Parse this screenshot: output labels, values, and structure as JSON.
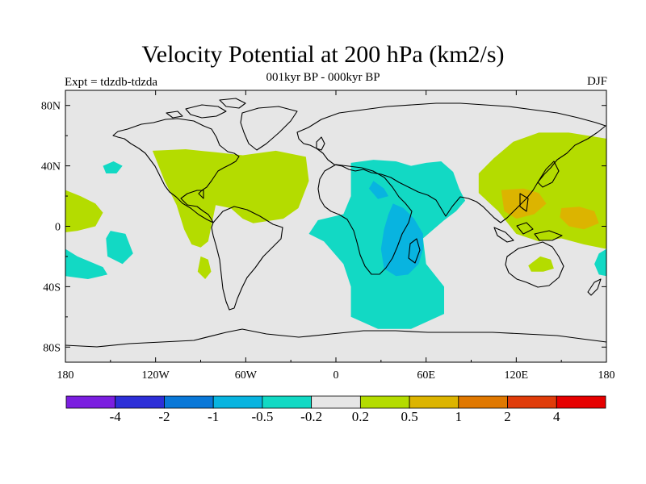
{
  "title": "Velocity Potential at 200 hPa (km2/s)",
  "subtitle": "001kyr BP - 000kyr BP",
  "experiment": "Expt = tdzdb-tdzda",
  "season": "DJF",
  "map": {
    "projection": "cylindrical-equidistant",
    "lon_range": [
      -180,
      180
    ],
    "lat_range": [
      -90,
      90
    ],
    "lat_ticks": [
      {
        "value": 80,
        "label": "80N"
      },
      {
        "value": 40,
        "label": "40N"
      },
      {
        "value": 0,
        "label": "0"
      },
      {
        "value": -40,
        "label": "40S"
      },
      {
        "value": -80,
        "label": "80S"
      }
    ],
    "lon_ticks": [
      {
        "value": -180,
        "label": "180"
      },
      {
        "value": -120,
        "label": "120W"
      },
      {
        "value": -60,
        "label": "60W"
      },
      {
        "value": 0,
        "label": "0"
      },
      {
        "value": 60,
        "label": "60E"
      },
      {
        "value": 120,
        "label": "120E"
      },
      {
        "value": 180,
        "label": "180"
      }
    ],
    "background_color": "#e6e6e6"
  },
  "colorbar": {
    "colors": [
      "#7b1ee0",
      "#2d2fd8",
      "#0a78d8",
      "#08b4e0",
      "#12d9c4",
      "#e6e6e6",
      "#b4dc00",
      "#dcb400",
      "#e07800",
      "#e03c0a",
      "#e60000"
    ],
    "labels": [
      "-4",
      "-2",
      "-1",
      "-0.5",
      "-0.2",
      "0.2",
      "0.5",
      "1",
      "2",
      "4"
    ]
  },
  "anomaly_regions": [
    {
      "name": "north-america-positive",
      "level": "0.2 to 0.5",
      "color": "#b4dc00",
      "lonlat": [
        [
          -122,
          50
        ],
        [
          -100,
          51
        ],
        [
          -80,
          49
        ],
        [
          -62,
          47
        ],
        [
          -40,
          50
        ],
        [
          -20,
          46
        ],
        [
          -18,
          30
        ],
        [
          -25,
          12
        ],
        [
          -35,
          5
        ],
        [
          -55,
          2
        ],
        [
          -62,
          5
        ],
        [
          -70,
          12
        ],
        [
          -80,
          14
        ],
        [
          -85,
          -10
        ],
        [
          -90,
          -14
        ],
        [
          -96,
          -12
        ],
        [
          -101,
          -2
        ],
        [
          -106,
          14
        ],
        [
          -114,
          30
        ],
        [
          -118,
          40
        ]
      ]
    },
    {
      "name": "east-pacific-positive",
      "level": "0.2 to 0.5",
      "color": "#b4dc00",
      "lonlat": [
        [
          -180,
          24
        ],
        [
          -170,
          20
        ],
        [
          -160,
          15
        ],
        [
          -155,
          9
        ],
        [
          -160,
          0
        ],
        [
          -172,
          -3
        ],
        [
          -180,
          -4
        ]
      ]
    },
    {
      "name": "south-america-positive",
      "level": "0.2 to 0.5",
      "color": "#b4dc00",
      "lonlat": [
        [
          -90,
          -20
        ],
        [
          -85,
          -22
        ],
        [
          -83,
          -30
        ],
        [
          -87,
          -35
        ],
        [
          -92,
          -30
        ]
      ]
    },
    {
      "name": "asia-pacific-positive",
      "level": "0.2 to 0.5",
      "color": "#b4dc00",
      "lonlat": [
        [
          135,
          62
        ],
        [
          155,
          62
        ],
        [
          180,
          58
        ],
        [
          180,
          -15
        ],
        [
          165,
          -12
        ],
        [
          150,
          -8
        ],
        [
          135,
          -10
        ],
        [
          120,
          -5
        ],
        [
          108,
          10
        ],
        [
          95,
          22
        ],
        [
          95,
          35
        ],
        [
          105,
          45
        ],
        [
          118,
          56
        ]
      ]
    },
    {
      "name": "australia-positive",
      "level": "0.2 to 0.5",
      "color": "#b4dc00",
      "lonlat": [
        [
          128,
          -26
        ],
        [
          136,
          -20
        ],
        [
          143,
          -22
        ],
        [
          145,
          -28
        ],
        [
          138,
          -30
        ],
        [
          130,
          -30
        ]
      ]
    },
    {
      "name": "asia-pacific-positive-core-a",
      "level": "0.5 to 1",
      "color": "#dcb400",
      "lonlat": [
        [
          110,
          24
        ],
        [
          125,
          25
        ],
        [
          135,
          22
        ],
        [
          140,
          15
        ],
        [
          132,
          8
        ],
        [
          120,
          5
        ],
        [
          112,
          10
        ]
      ]
    },
    {
      "name": "asia-pacific-positive-core-b",
      "level": "0.5 to 1",
      "color": "#dcb400",
      "lonlat": [
        [
          150,
          12
        ],
        [
          162,
          13
        ],
        [
          172,
          10
        ],
        [
          175,
          2
        ],
        [
          165,
          -2
        ],
        [
          155,
          0
        ],
        [
          149,
          6
        ]
      ]
    },
    {
      "name": "africa-negative",
      "level": "-0.5 to -0.2",
      "color": "#12d9c4",
      "lonlat": [
        [
          10,
          42
        ],
        [
          25,
          44
        ],
        [
          40,
          43
        ],
        [
          50,
          40
        ],
        [
          60,
          42
        ],
        [
          70,
          43
        ],
        [
          78,
          36
        ],
        [
          82,
          25
        ],
        [
          86,
          17
        ],
        [
          80,
          10
        ],
        [
          72,
          4
        ],
        [
          58,
          -8
        ],
        [
          60,
          -25
        ],
        [
          72,
          -40
        ],
        [
          72,
          -58
        ],
        [
          50,
          -68
        ],
        [
          28,
          -68
        ],
        [
          10,
          -60
        ],
        [
          10,
          -40
        ],
        [
          5,
          -25
        ],
        [
          -8,
          -10
        ],
        [
          -18,
          -5
        ],
        [
          -12,
          4
        ],
        [
          5,
          8
        ],
        [
          10,
          20
        ]
      ]
    },
    {
      "name": "north-pacific-negative",
      "level": "-0.5 to -0.2",
      "color": "#12d9c4",
      "lonlat": [
        [
          -155,
          40
        ],
        [
          -148,
          43
        ],
        [
          -142,
          40
        ],
        [
          -146,
          35
        ],
        [
          -153,
          35
        ]
      ]
    },
    {
      "name": "south-pacific-negative",
      "level": "-0.5 to -0.2",
      "color": "#12d9c4",
      "lonlat": [
        [
          -150,
          -3
        ],
        [
          -140,
          -5
        ],
        [
          -135,
          -18
        ],
        [
          -142,
          -25
        ],
        [
          -152,
          -20
        ],
        [
          -153,
          -8
        ]
      ]
    },
    {
      "name": "far-south-pacific-negative",
      "level": "-0.5 to -0.2",
      "color": "#12d9c4",
      "lonlat": [
        [
          -180,
          -15
        ],
        [
          -172,
          -20
        ],
        [
          -155,
          -27
        ],
        [
          -152,
          -32
        ],
        [
          -165,
          -35
        ],
        [
          -180,
          -33
        ]
      ]
    },
    {
      "name": "tasman-negative",
      "level": "-0.5 to -0.2",
      "color": "#12d9c4",
      "lonlat": [
        [
          180,
          -15
        ],
        [
          175,
          -18
        ],
        [
          172,
          -25
        ],
        [
          175,
          -32
        ],
        [
          180,
          -33
        ]
      ]
    },
    {
      "name": "africa-negative-core-a",
      "level": "-1 to -0.5",
      "color": "#08b4e0",
      "lonlat": [
        [
          25,
          30
        ],
        [
          32,
          25
        ],
        [
          35,
          20
        ],
        [
          28,
          18
        ],
        [
          22,
          25
        ]
      ]
    },
    {
      "name": "africa-negative-core-b",
      "level": "-1 to -0.5",
      "color": "#08b4e0",
      "lonlat": [
        [
          38,
          15
        ],
        [
          45,
          12
        ],
        [
          52,
          5
        ],
        [
          58,
          -5
        ],
        [
          58,
          -15
        ],
        [
          55,
          -25
        ],
        [
          48,
          -32
        ],
        [
          40,
          -33
        ],
        [
          32,
          -28
        ],
        [
          30,
          -15
        ],
        [
          32,
          -2
        ],
        [
          35,
          8
        ]
      ]
    }
  ]
}
